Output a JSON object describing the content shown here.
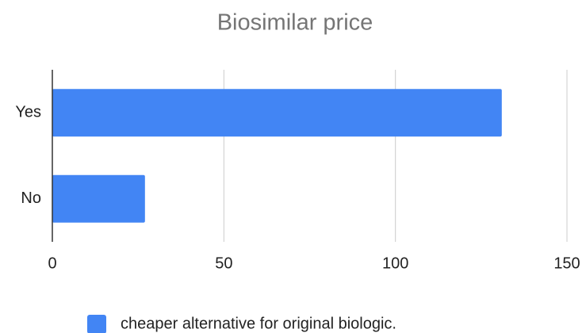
{
  "chart_data": {
    "type": "bar",
    "orientation": "horizontal",
    "title": "Biosimilar price",
    "categories": [
      "Yes",
      "No"
    ],
    "series": [
      {
        "name": "cheaper alternative for original biologic.",
        "color": "#4285f4",
        "values": [
          131,
          27
        ]
      }
    ],
    "xlim": [
      0,
      150
    ],
    "xticks": [
      0,
      50,
      100,
      150
    ],
    "grid": true,
    "legend": "bottom"
  }
}
